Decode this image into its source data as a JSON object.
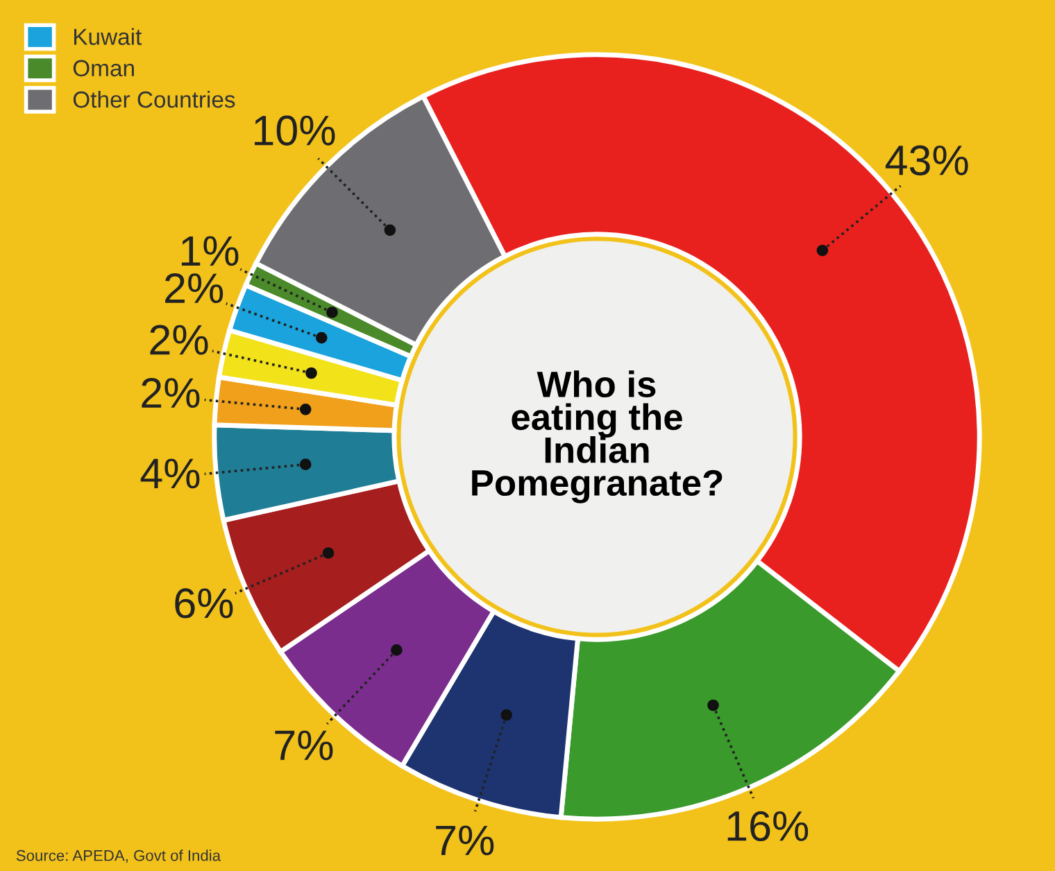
{
  "chart_data": {
    "type": "donut",
    "title": "Who is\neating the\nIndian\nPomegranate?",
    "categories": [
      null,
      null,
      null,
      null,
      null,
      null,
      null,
      null,
      "Kuwait",
      "Oman",
      "Other Countries"
    ],
    "values": [
      43,
      16,
      7,
      7,
      6,
      4,
      2,
      2,
      2,
      1,
      10
    ],
    "value_labels": [
      "43%",
      "16%",
      "7%",
      "7%",
      "6%",
      "4%",
      "2%",
      "2%",
      "2%",
      "1%",
      "10%"
    ],
    "colors": [
      "#e8211e",
      "#3a9a2c",
      "#1e3470",
      "#7b2d8e",
      "#a61e1e",
      "#1f7d96",
      "#f0a01a",
      "#f2e21a",
      "#1aa3dc",
      "#4a8a2a",
      "#6e6e72"
    ],
    "legend": "top left",
    "annotations": [
      "Source: APEDA, Govt of India"
    ]
  }
}
